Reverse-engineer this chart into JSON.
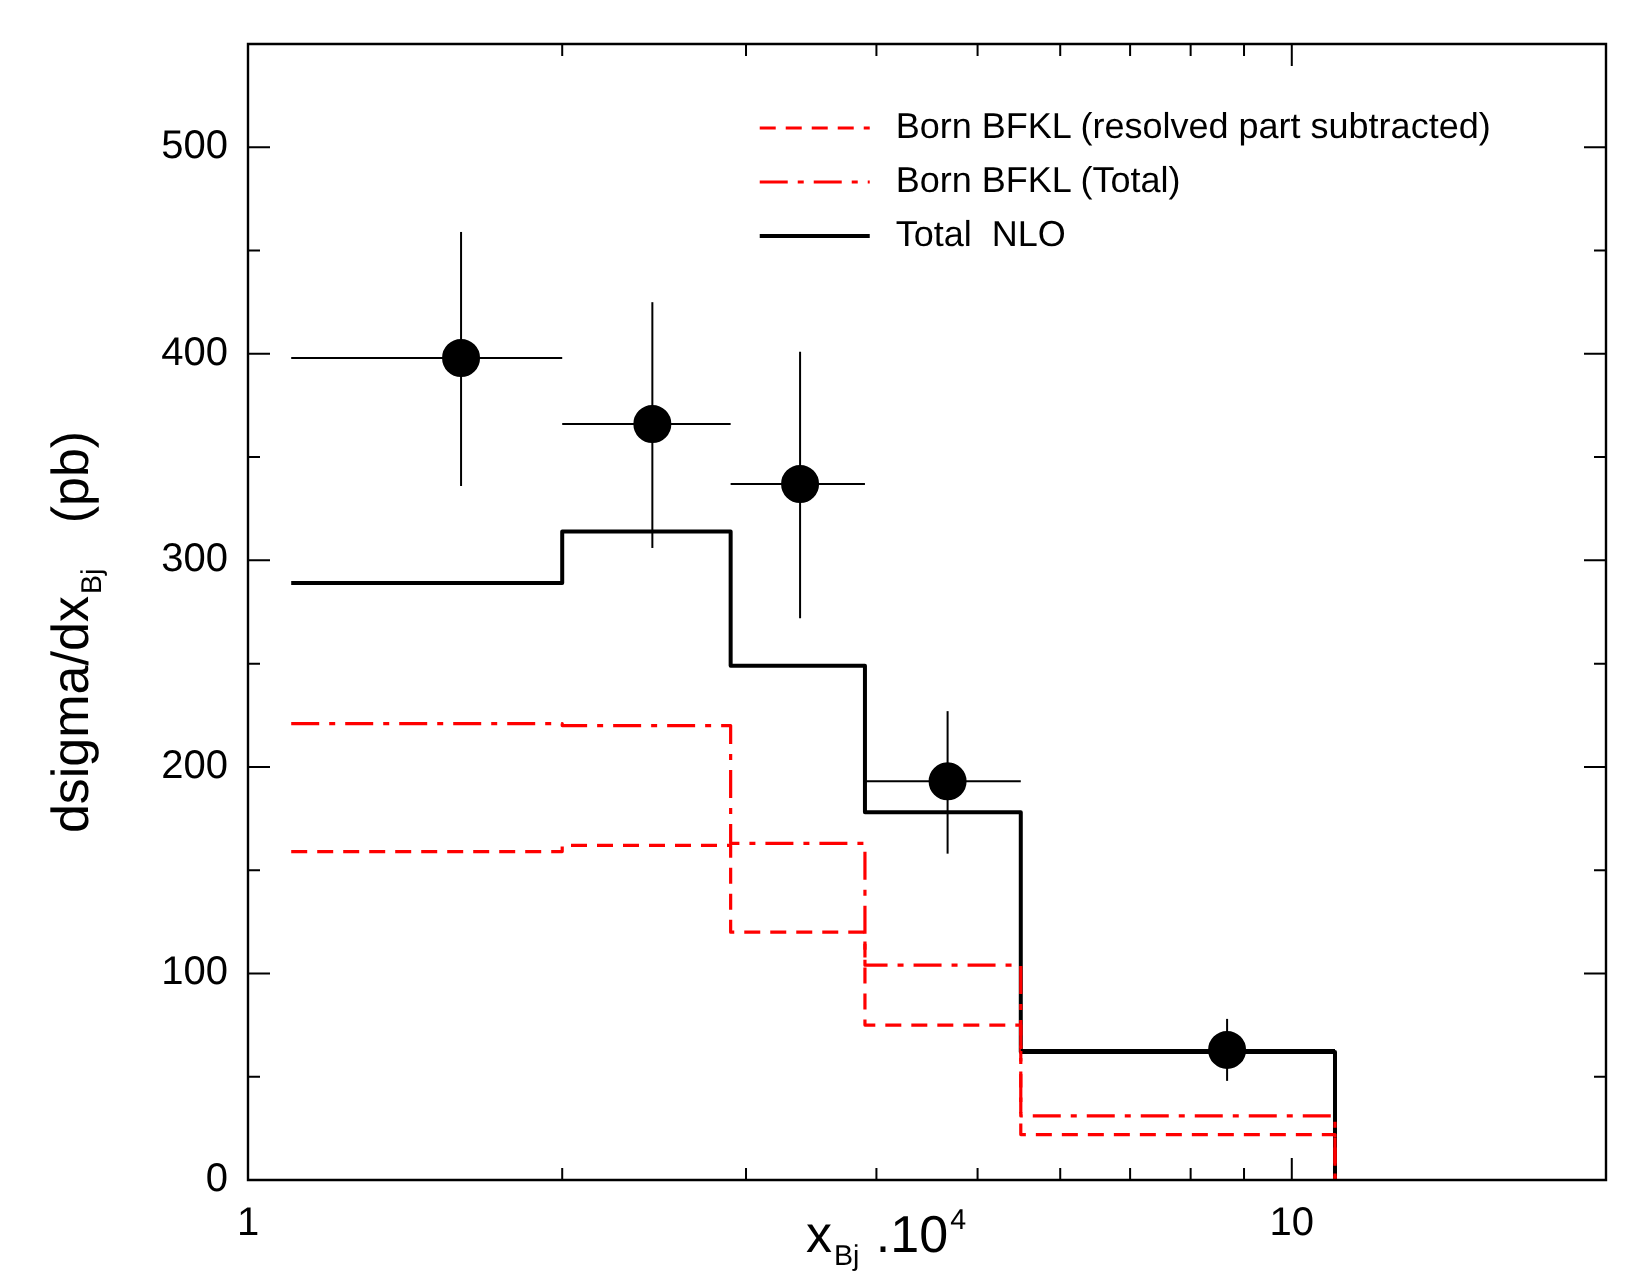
{
  "chart_data": {
    "type": "histogram",
    "xlabel": "x$_{Bj}$ .10$^{4}$",
    "ylabel": "dsigma/dx$_{Bj}$   (pb)",
    "log": "x",
    "xlim": [
      1,
      20
    ],
    "xticks": [
      1,
      {
        "value": 2,
        "label": null
      },
      {
        "value": 3,
        "label": null
      },
      {
        "value": 4,
        "label": null
      },
      {
        "value": 5,
        "label": null
      },
      {
        "value": 6,
        "label": null
      },
      {
        "value": 7,
        "label": null
      },
      {
        "value": 8,
        "label": null
      },
      {
        "value": 9,
        "label": null
      },
      10,
      {
        "value": 20,
        "label": null
      }
    ],
    "ylim": [
      0,
      550
    ],
    "yticks": [
      0,
      {
        "value": 50,
        "label": null
      },
      100,
      {
        "value": 150,
        "label": null
      },
      200,
      {
        "value": 250,
        "label": null
      },
      300,
      {
        "value": 350,
        "label": null
      },
      400,
      {
        "value": 450,
        "label": null
      },
      500
    ],
    "grid": false,
    "legend": "top right",
    "series": [
      {
        "type": "histogram",
        "name": "Born BFKL (resolved part subtracted)",
        "color": "#ff0000",
        "line_style": "dashed",
        "bins": [
          1.1,
          2.0,
          2.9,
          3.9,
          5.5,
          11
        ],
        "values": [
          159,
          162,
          120,
          75,
          22
        ]
      },
      {
        "type": "histogram",
        "name": "Born BFKL (Total)",
        "color": "#ff0000",
        "line_style": "dashdot",
        "bins": [
          1.1,
          2.0,
          2.9,
          3.9,
          5.5,
          11
        ],
        "values": [
          221,
          220,
          163,
          104,
          31
        ]
      },
      {
        "type": "histogram",
        "name": "Total  NLO",
        "color": "#000000",
        "line_style": "solid",
        "bins": [
          1.1,
          2.0,
          2.9,
          3.9,
          5.5,
          11
        ],
        "values": [
          289,
          314,
          249,
          178,
          62
        ]
      },
      {
        "type": "scatter",
        "color": "#000000",
        "marker": "circle",
        "x": [
          1.6,
          2.44,
          3.38,
          4.68,
          8.67
        ],
        "values": [
          398,
          366,
          337,
          193,
          63
        ],
        "errors": [
          [
            336,
            459
          ],
          [
            306,
            425
          ],
          [
            272,
            401
          ],
          [
            158,
            227
          ],
          [
            48,
            78
          ]
        ],
        "xerrors": [
          [
            1.1,
            2.0
          ],
          [
            2.0,
            2.9
          ],
          [
            2.9,
            3.9
          ],
          [
            3.9,
            5.5
          ],
          [
            5.5,
            11
          ]
        ]
      }
    ]
  }
}
